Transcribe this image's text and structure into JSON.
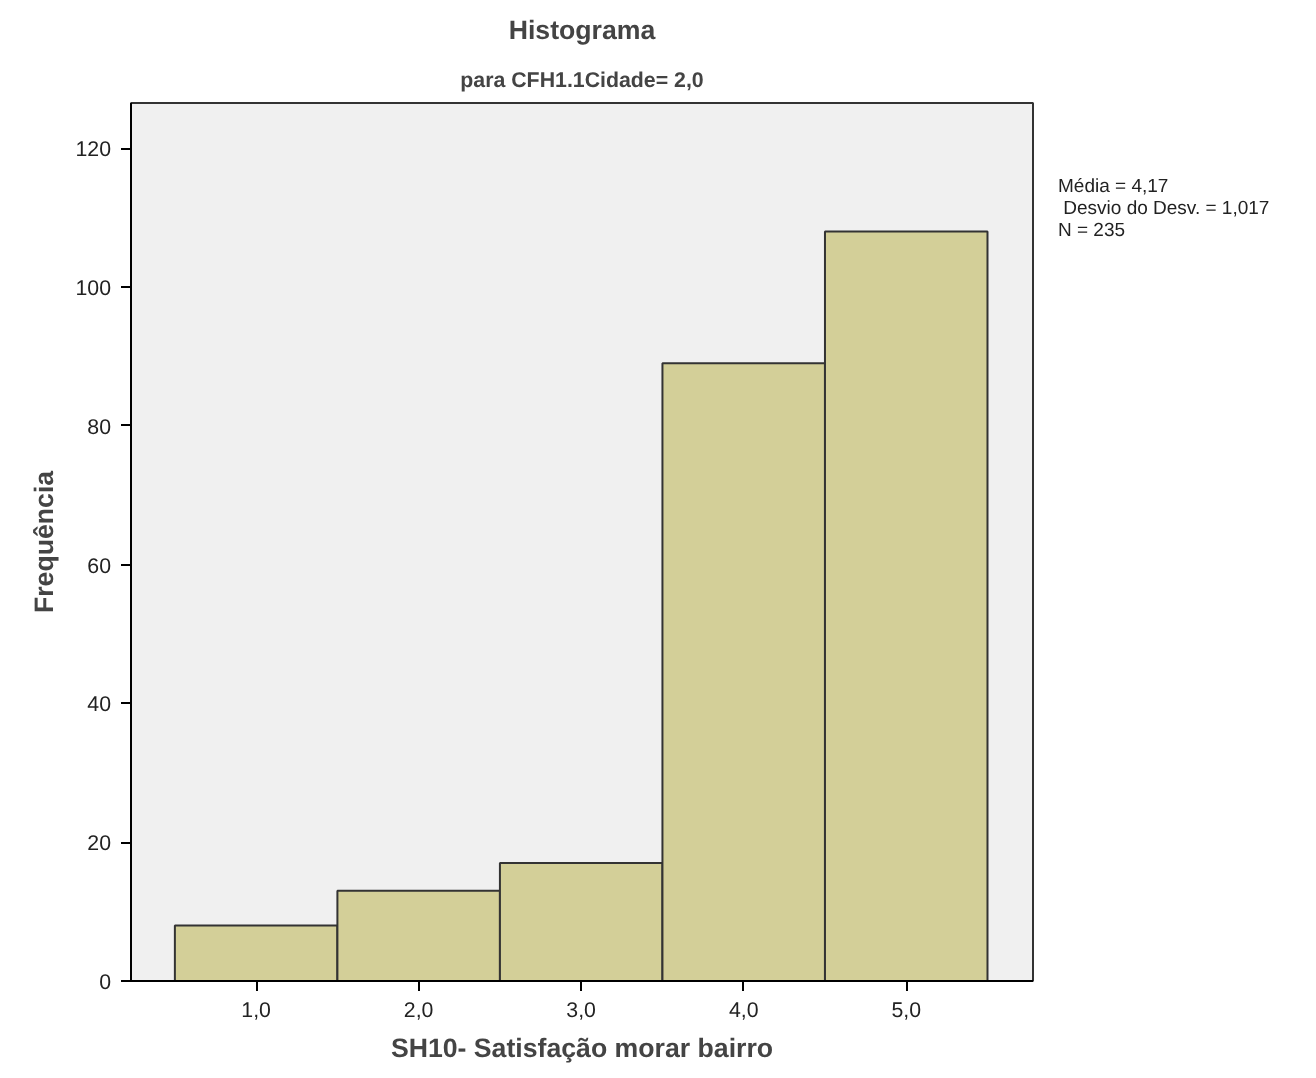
{
  "chart_data": {
    "type": "histogram",
    "title": "Histograma",
    "subtitle": "para CFH1.1Cidade= 2,0",
    "xlabel": "SH10- Satisfação morar bairro",
    "ylabel": "Frequência",
    "bins": [
      0.5,
      1.5,
      2.5,
      3.5,
      4.5,
      5.5
    ],
    "values": [
      8,
      13,
      17,
      89,
      108
    ],
    "color": "#d3cf98",
    "xlim": [
      0.23,
      5.78
    ],
    "ylim": [
      0,
      126.5
    ],
    "xticks": [
      {
        "value": 1,
        "label": "1,0"
      },
      {
        "value": 2,
        "label": "2,0"
      },
      {
        "value": 3,
        "label": "3,0"
      },
      {
        "value": 4,
        "label": "4,0"
      },
      {
        "value": 5,
        "label": "5,0"
      }
    ],
    "yticks": [
      0,
      20,
      40,
      60,
      80,
      100,
      120
    ],
    "annotations": [
      "Média = 4,17",
      " Desvio do Desv. = 1,017",
      "N = 235"
    ],
    "grid": false
  }
}
